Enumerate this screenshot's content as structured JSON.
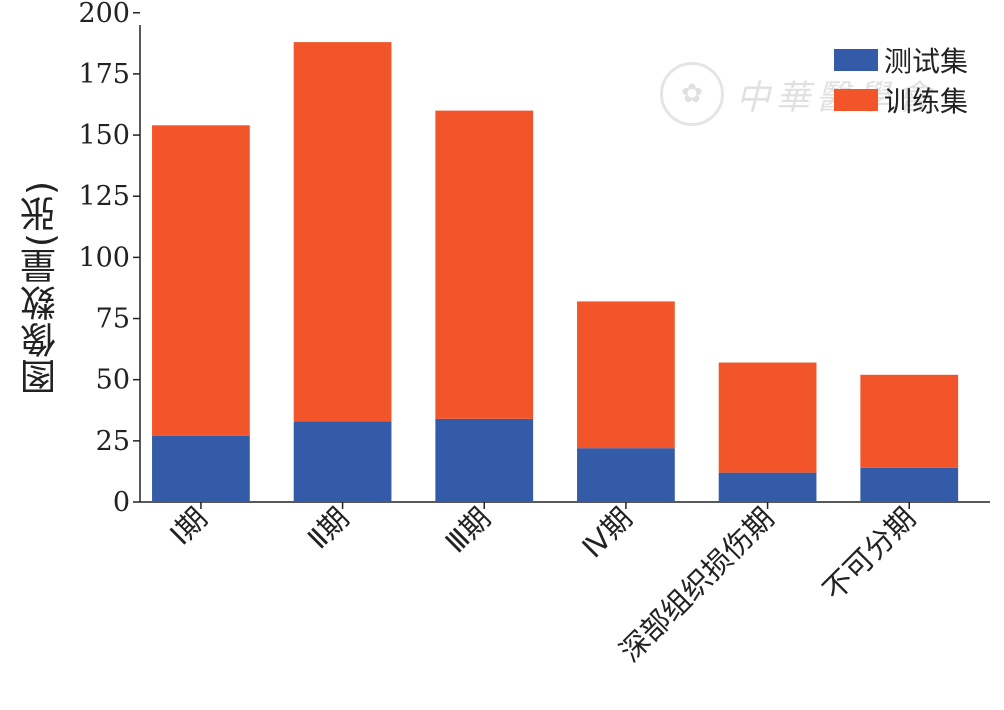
{
  "chart_data": {
    "type": "bar",
    "stacked": true,
    "categories": [
      "Ⅰ期",
      "Ⅱ期",
      "Ⅲ期",
      "Ⅳ期",
      "深部组织损伤期",
      "不可分期"
    ],
    "series": [
      {
        "name": "测试集",
        "color": "#335ba8",
        "values": [
          27,
          33,
          34,
          22,
          12,
          14
        ]
      },
      {
        "name": "训练集",
        "color": "#f15529",
        "values": [
          127,
          155,
          126,
          60,
          45,
          38
        ]
      }
    ],
    "title": "",
    "xlabel": "",
    "ylabel": "图像数量(张)",
    "yticks": [
      0,
      25,
      50,
      75,
      100,
      125,
      150,
      175,
      200
    ],
    "ylim": [
      0,
      195
    ],
    "grid": false,
    "legend_position": "top-right"
  },
  "watermark": {
    "text": "中華醫學會",
    "seal_icon": "seal-emblem-icon"
  }
}
